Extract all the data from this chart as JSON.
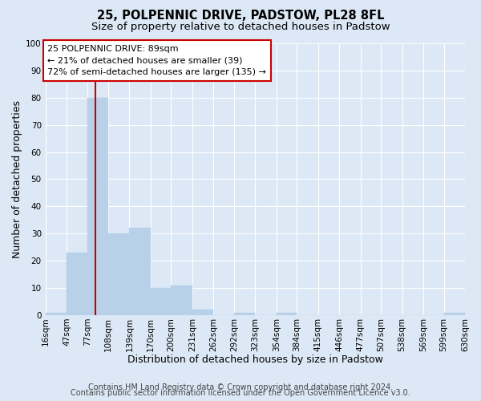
{
  "title": "25, POLPENNIC DRIVE, PADSTOW, PL28 8FL",
  "subtitle": "Size of property relative to detached houses in Padstow",
  "xlabel": "Distribution of detached houses by size in Padstow",
  "ylabel": "Number of detached properties",
  "bin_edges": [
    16,
    47,
    77,
    108,
    139,
    170,
    200,
    231,
    262,
    292,
    323,
    354,
    384,
    415,
    446,
    477,
    507,
    538,
    569,
    599,
    630
  ],
  "bar_heights": [
    1,
    23,
    80,
    30,
    32,
    10,
    11,
    2,
    0,
    1,
    0,
    1,
    0,
    0,
    0,
    0,
    0,
    0,
    0,
    1
  ],
  "bar_color": "#b8d0e8",
  "bar_edge_color": "#b8d0e8",
  "vline_x": 89,
  "vline_color": "#cc0000",
  "ylim": [
    0,
    100
  ],
  "tick_labels": [
    "16sqm",
    "47sqm",
    "77sqm",
    "108sqm",
    "139sqm",
    "170sqm",
    "200sqm",
    "231sqm",
    "262sqm",
    "292sqm",
    "323sqm",
    "354sqm",
    "384sqm",
    "415sqm",
    "446sqm",
    "477sqm",
    "507sqm",
    "538sqm",
    "569sqm",
    "599sqm",
    "630sqm"
  ],
  "annotation_title": "25 POLPENNIC DRIVE: 89sqm",
  "annotation_line1": "← 21% of detached houses are smaller (39)",
  "annotation_line2": "72% of semi-detached houses are larger (135) →",
  "annotation_box_color": "#ffffff",
  "annotation_box_edge": "#cc0000",
  "footer_line1": "Contains HM Land Registry data © Crown copyright and database right 2024.",
  "footer_line2": "Contains public sector information licensed under the Open Government Licence v3.0.",
  "background_color": "#dce8f5",
  "plot_bg_color": "#dce8f5",
  "grid_color": "#ffffff",
  "title_fontsize": 10.5,
  "subtitle_fontsize": 9.5,
  "label_fontsize": 9,
  "tick_fontsize": 7.5,
  "annot_fontsize": 8,
  "footer_fontsize": 7
}
